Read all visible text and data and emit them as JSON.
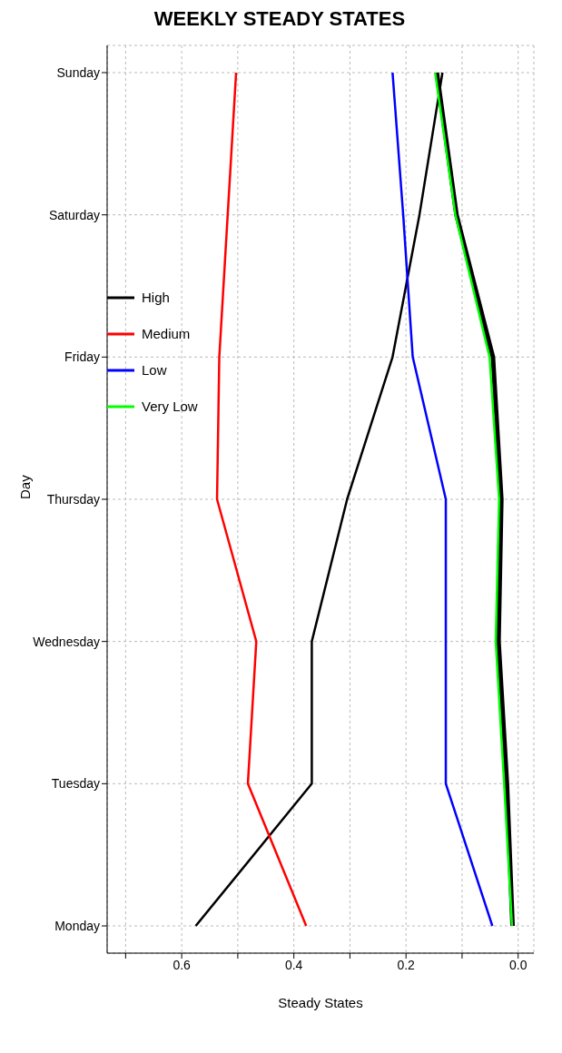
{
  "chart_data": {
    "type": "line",
    "title": "WEEKLY STEADY STATES",
    "xlabel": "Steady States",
    "ylabel": "Day",
    "orientation": "horizontal",
    "categories": [
      "Sunday",
      "Saturday",
      "Friday",
      "Thursday",
      "Wednesday",
      "Tuesday",
      "Monday"
    ],
    "series": [
      {
        "name": "High",
        "color": "#000000",
        "values": [
          0.135,
          0.176,
          0.224,
          0.305,
          0.368,
          0.368,
          0.575
        ]
      },
      {
        "name": "Medium",
        "color": "#ff0000",
        "values": [
          0.503,
          0.518,
          0.533,
          0.537,
          0.467,
          0.482,
          0.378
        ]
      },
      {
        "name": "Low",
        "color": "#0000ff",
        "values": [
          0.224,
          0.205,
          0.188,
          0.129,
          0.129,
          0.129,
          0.046
        ]
      },
      {
        "color": "#000000",
        "values": [
          0.145,
          0.11,
          0.045,
          0.03,
          0.035,
          0.02,
          0.01
        ]
      },
      {
        "name": "Very Low",
        "color": "#00ff00",
        "values": [
          0.148,
          0.112,
          0.051,
          0.034,
          0.04,
          0.025,
          0.011
        ]
      }
    ],
    "xlim": [
      0.733,
      -0.028
    ],
    "xticks": [
      {
        "value": 0.7,
        "label": null
      },
      {
        "value": 0.6,
        "label": "0.6"
      },
      {
        "value": 0.5,
        "label": null
      },
      {
        "value": 0.4,
        "label": "0.4"
      },
      {
        "value": 0.3,
        "label": null
      },
      {
        "value": 0.2,
        "label": "0.2"
      },
      {
        "value": 0.1,
        "label": null
      },
      {
        "value": 0,
        "label": "0.0"
      }
    ],
    "grid": true,
    "legend": "left",
    "line_style": "solid",
    "marker": "none"
  }
}
